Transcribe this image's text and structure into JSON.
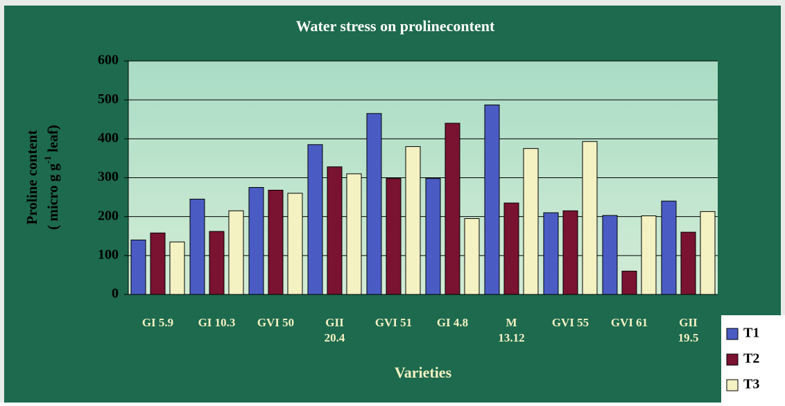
{
  "chart_data": {
    "type": "bar",
    "title": "Water stress on prolinecontent",
    "xlabel": "Varieties",
    "ylabel": {
      "line1": "Proline content",
      "line2": [
        "( micro g g",
        "-1",
        " leaf)"
      ]
    },
    "categories": [
      [
        "GI 5.9"
      ],
      [
        "GI 10.3"
      ],
      [
        "GVI 50"
      ],
      [
        "GII",
        "20.4"
      ],
      [
        "GVI 51"
      ],
      [
        "GI 4.8"
      ],
      [
        "M",
        "13.12"
      ],
      [
        "GVI 55"
      ],
      [
        "GVI 61"
      ],
      [
        "GII",
        "19.5"
      ]
    ],
    "series": [
      {
        "name": "T1",
        "color": "#4a5cc4",
        "values": [
          140,
          245,
          275,
          385,
          465,
          298,
          487,
          210,
          203,
          240
        ]
      },
      {
        "name": "T2",
        "color": "#7a1232",
        "values": [
          158,
          162,
          268,
          328,
          298,
          440,
          235,
          215,
          60,
          160
        ]
      },
      {
        "name": "T3",
        "color": "#f4f1c2",
        "values": [
          135,
          215,
          260,
          310,
          380,
          195,
          375,
          393,
          202,
          213
        ]
      }
    ],
    "ylim": [
      0,
      600
    ],
    "yticks": [
      0,
      100,
      200,
      300,
      400,
      500,
      600
    ],
    "grid": true,
    "legend": "lower right"
  }
}
